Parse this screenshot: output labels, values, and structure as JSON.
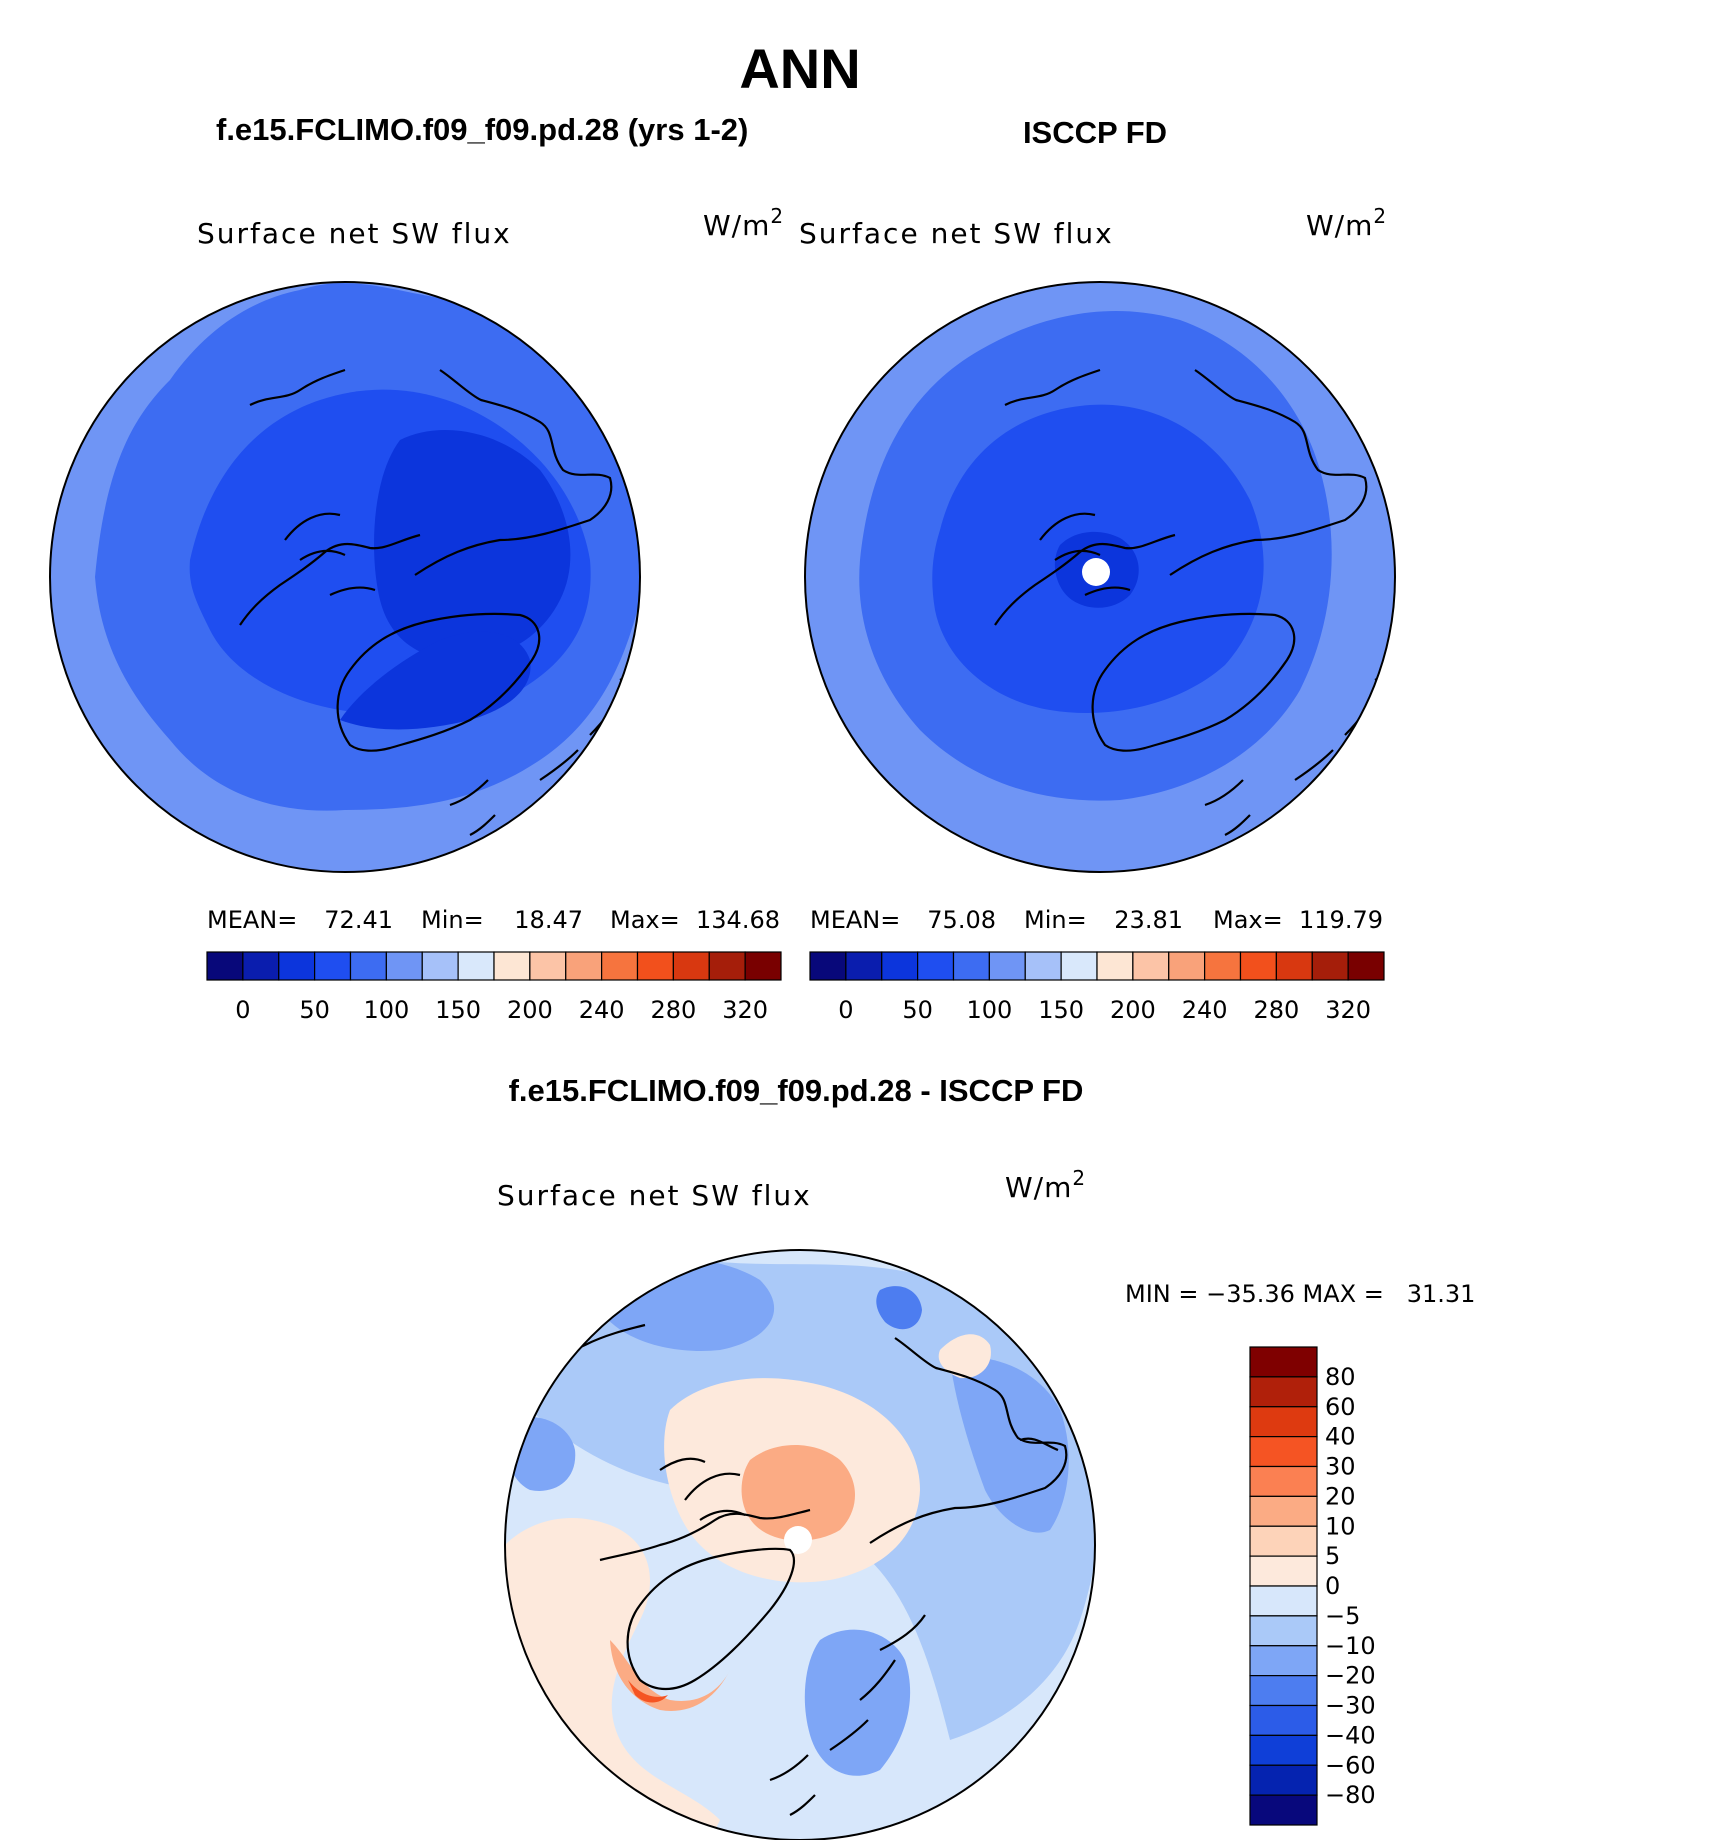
{
  "figure_title": "ANN",
  "chart_data": [
    {
      "type": "heatmap",
      "projection": "north-polar-stereographic",
      "case_title": "f.e15.FCLIMO.f09_f09.pd.28 (yrs 1-2)",
      "title": "Surface net SW flux",
      "units": "W/m",
      "units_exp": "2",
      "stats": [
        {
          "label": "MEAN=",
          "value": "72.41"
        },
        {
          "label": "Min=",
          "value": "18.47"
        },
        {
          "label": "Max=",
          "value": "134.68"
        }
      ],
      "levels": [
        0,
        25,
        50,
        75,
        100,
        125,
        150,
        175,
        200,
        220,
        240,
        260,
        280,
        300,
        320
      ],
      "colorbar_labels": [
        "0",
        "50",
        "100",
        "150",
        "200",
        "240",
        "280",
        "320"
      ],
      "colorbar_colors": [
        "#08087a",
        "#0a1dae",
        "#0c35dc",
        "#1f4ef0",
        "#3d6cf2",
        "#6f95f5",
        "#a6c1f9",
        "#d9e8fb",
        "#fde6d4",
        "#fcc4a7",
        "#f9a27a",
        "#f6743e",
        "#f2501c",
        "#d83810",
        "#a51e0a",
        "#790000"
      ],
      "field_summary": {
        "north_pole_interior": 18.47,
        "mid_arctic": 50,
        "outer_ring_60N": 100,
        "max": 134.68
      }
    },
    {
      "type": "heatmap",
      "projection": "north-polar-stereographic",
      "case_title": "ISCCP FD",
      "title": "Surface net SW flux",
      "units": "W/m",
      "units_exp": "2",
      "stats": [
        {
          "label": "MEAN=",
          "value": "75.08"
        },
        {
          "label": "Min=",
          "value": "23.81"
        },
        {
          "label": "Max=",
          "value": "119.79"
        }
      ],
      "levels": [
        0,
        25,
        50,
        75,
        100,
        125,
        150,
        175,
        200,
        220,
        240,
        260,
        280,
        300,
        320
      ],
      "colorbar_labels": [
        "0",
        "50",
        "100",
        "150",
        "200",
        "240",
        "280",
        "320"
      ],
      "colorbar_colors": [
        "#08087a",
        "#0a1dae",
        "#0c35dc",
        "#1f4ef0",
        "#3d6cf2",
        "#6f95f5",
        "#a6c1f9",
        "#d9e8fb",
        "#fde6d4",
        "#fcc4a7",
        "#f9a27a",
        "#f6743e",
        "#f2501c",
        "#d83810",
        "#a51e0a",
        "#790000"
      ],
      "field_summary": {
        "north_pole": "missing",
        "mid_arctic": 45,
        "outer_ring_60N": 110,
        "max": 119.79
      }
    },
    {
      "type": "heatmap",
      "projection": "north-polar-stereographic",
      "case_title": "f.e15.FCLIMO.f09_f09.pd.28 - ISCCP FD",
      "title": "Surface net SW flux",
      "units": "W/m",
      "units_exp": "2",
      "minmax_text": "MIN = −35.36 MAX =   31.31",
      "levels": [
        -80,
        -60,
        -40,
        -30,
        -20,
        -10,
        -5,
        0,
        5,
        10,
        20,
        30,
        40,
        60,
        80
      ],
      "colorbar_labels": [
        "80",
        "60",
        "40",
        "30",
        "20",
        "10",
        "5",
        "0",
        "−5",
        "−10",
        "−20",
        "−30",
        "−40",
        "−60",
        "−80"
      ],
      "colorbar_colors_top_to_bottom": [
        "#7f0000",
        "#b0200a",
        "#de3a10",
        "#f55423",
        "#fb8052",
        "#fbab84",
        "#fdd3b9",
        "#fde9dc",
        "#d7e7fb",
        "#aac9f8",
        "#7ea6f6",
        "#4d7df0",
        "#2c5ce8",
        "#0f3fd8",
        "#0523b0",
        "#08087c"
      ],
      "field_summary": {
        "central_arctic": 10,
        "greenland_margin": 20,
        "north_atlantic": -10,
        "pacific_sector": -20,
        "min": -35.36,
        "max": 31.31
      }
    }
  ]
}
